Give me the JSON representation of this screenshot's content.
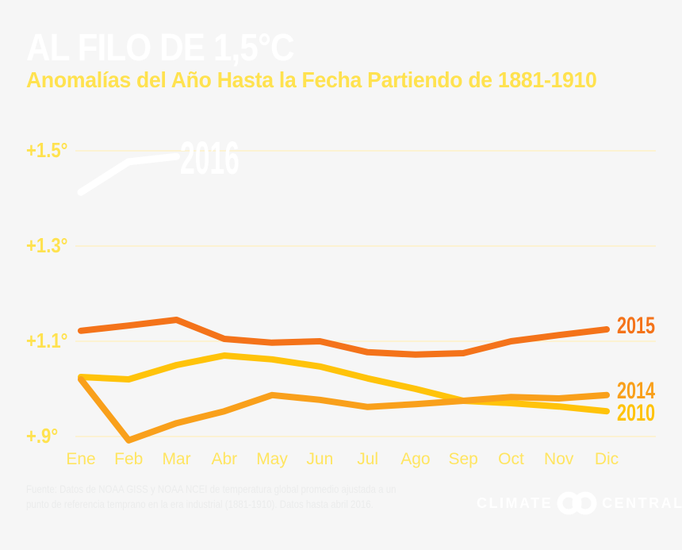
{
  "header": {
    "title": "AL FILO DE 1,5°C",
    "subtitle": "Anomalías del Año Hasta la Fecha Partiendo de 1881-1910"
  },
  "footer": {
    "source_line1": "Fuente: Datos de NOAA GISS y NOAA NCEI de temperatura global promedio ajustada a un",
    "source_line2": "punto de referencia temprano en la era industrial (1881-1910). Datos hasta abril 2016.",
    "logo": {
      "left_word": "CLIMATE",
      "right_word": "CENTRAL"
    }
  },
  "colors": {
    "background": "#f6f6f6",
    "title": "#ffffff",
    "subtitle_yellow": "#ffe24f",
    "axis_month_yellow": "#ffe561",
    "gridline": "#fff0bd",
    "footer_text": "#ebecec"
  },
  "chart_data": {
    "type": "line",
    "title": "AL FILO DE 1,5°C",
    "subtitle": "Anomalías del Año Hasta la Fecha Partiendo de 1881-1910",
    "unit": "°C sobre el promedio 1881-1910",
    "categories": [
      "Ene",
      "Feb",
      "Mar",
      "Abr",
      "May",
      "Jun",
      "Jul",
      "Ago",
      "Sep",
      "Oct",
      "Nov",
      "Dic"
    ],
    "ylim": [
      0.85,
      1.55
    ],
    "grid": "horizontal-only",
    "legend_position": "inline-right-of-lines",
    "y_ticks": [
      {
        "label": "+1.5°",
        "value": 1.5
      },
      {
        "label": "+1.3°",
        "value": 1.3
      },
      {
        "label": "+1.1°",
        "value": 1.1
      },
      {
        "label": "+.9°",
        "value": 0.9
      }
    ],
    "series": [
      {
        "name": "2016",
        "color": "#ffffff",
        "values": [
          1.413,
          1.477,
          1.488,
          null,
          null,
          null,
          null,
          null,
          null,
          null,
          null,
          null
        ]
      },
      {
        "name": "2015",
        "color": "#f4731a",
        "values": [
          1.122,
          1.133,
          1.145,
          1.105,
          1.097,
          1.1,
          1.077,
          1.072,
          1.075,
          1.1,
          1.113,
          1.125
        ]
      },
      {
        "name": "2014",
        "color": "#f9a01b",
        "values": [
          1.02,
          0.892,
          0.928,
          0.953,
          0.987,
          0.977,
          0.962,
          0.968,
          0.975,
          0.983,
          0.98,
          0.987
        ]
      },
      {
        "name": "2010",
        "color": "#ffc30a",
        "values": [
          1.025,
          1.02,
          1.05,
          1.07,
          1.062,
          1.047,
          1.022,
          1.0,
          0.975,
          0.97,
          0.963,
          0.953
        ]
      }
    ]
  }
}
